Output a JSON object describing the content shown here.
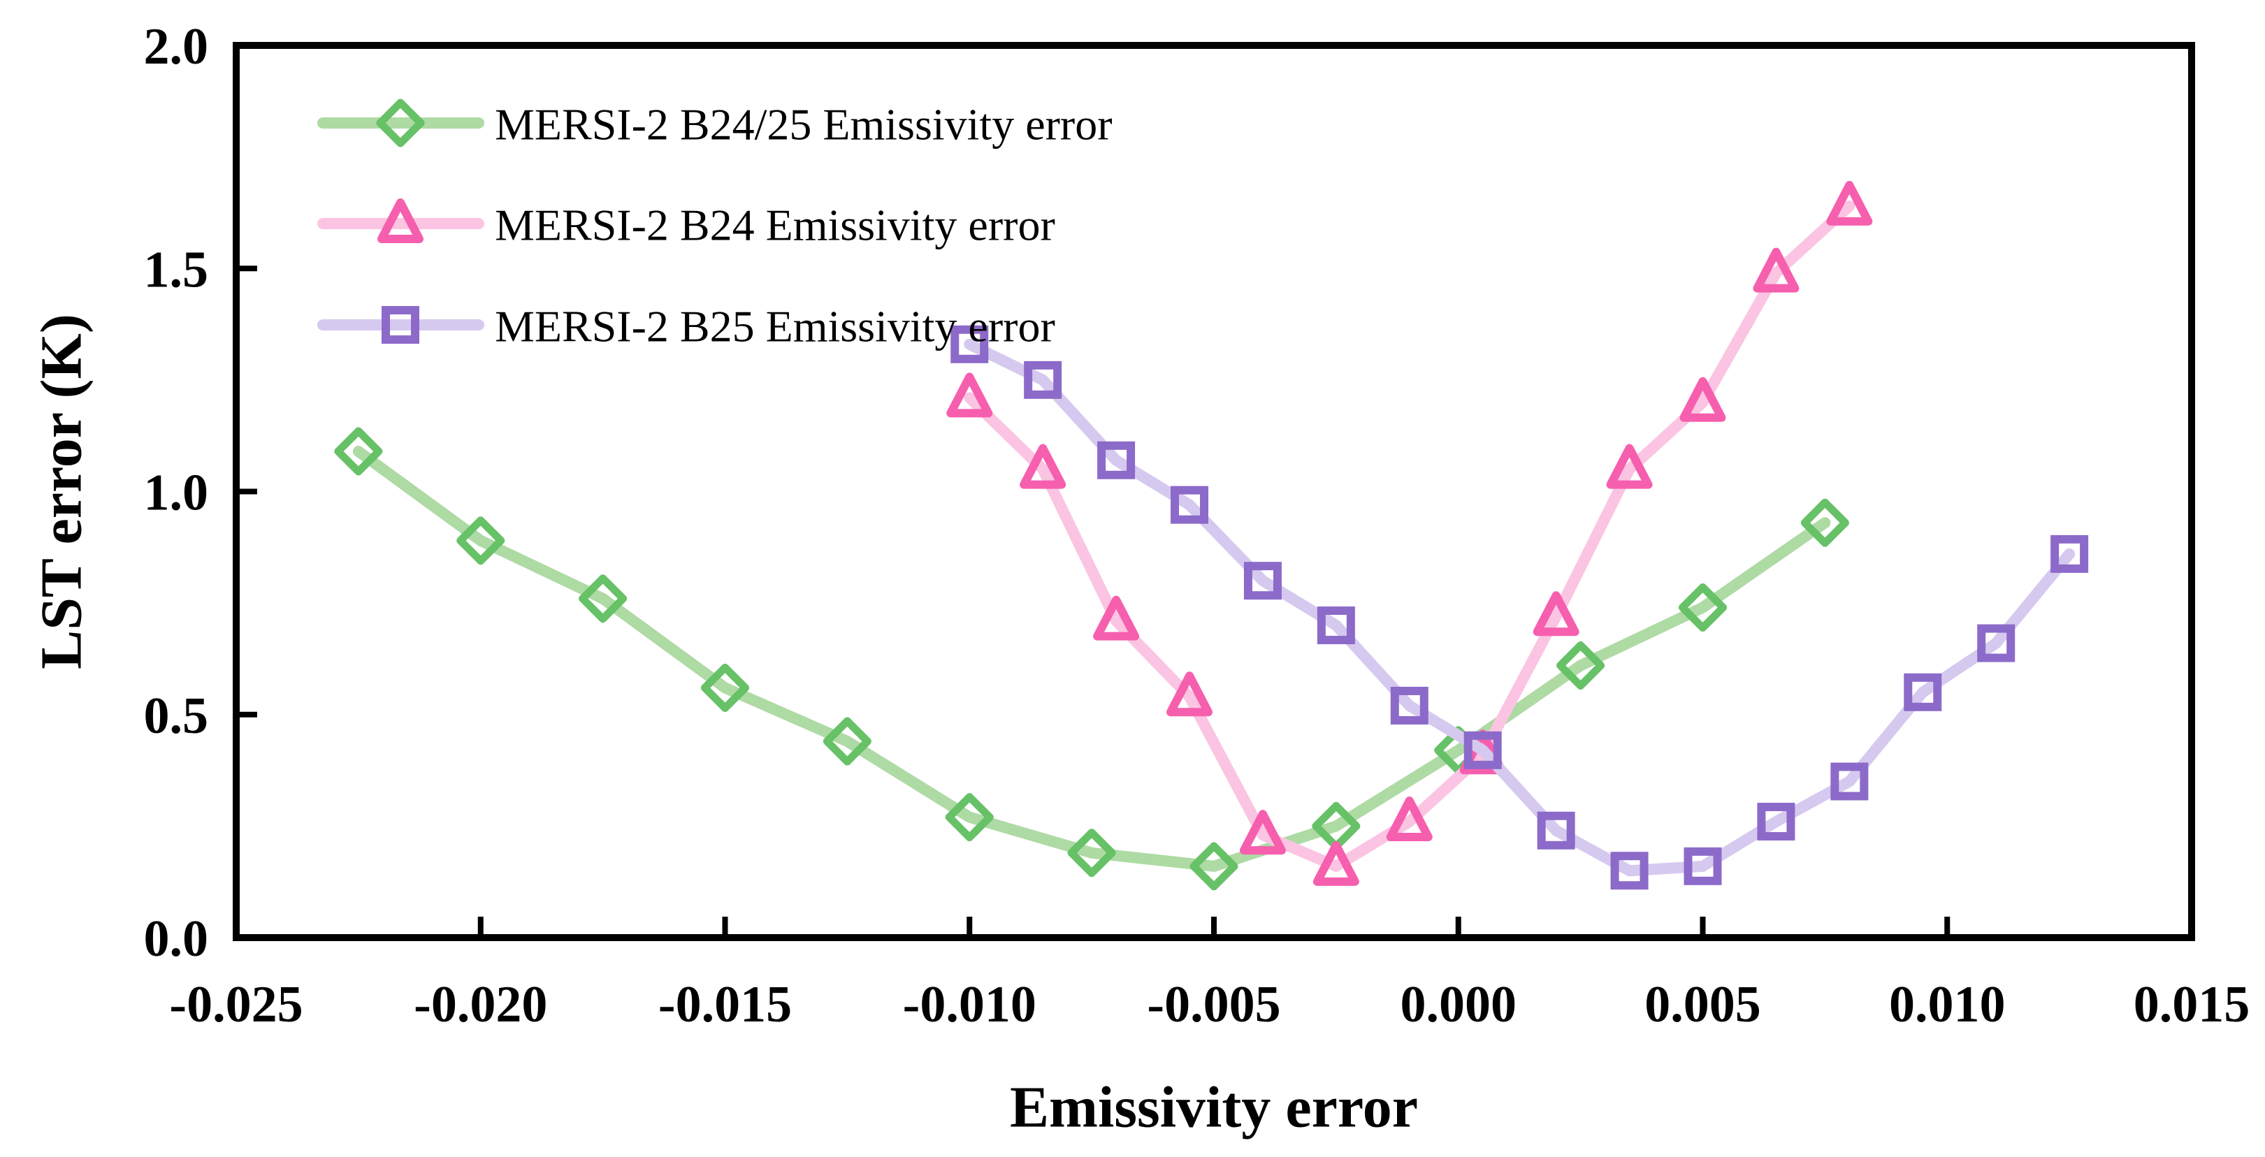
{
  "chart_data": {
    "type": "line",
    "title": "",
    "xlabel": "Emissivity error",
    "ylabel": "LST error (K)",
    "xlim": [
      -0.025,
      0.015
    ],
    "ylim": [
      0.0,
      2.0
    ],
    "grid": false,
    "background_color": "#ffffff",
    "axis_color": "#000000",
    "x_ticks": [
      -0.025,
      -0.02,
      -0.015,
      -0.01,
      -0.005,
      0.0,
      0.005,
      0.01,
      0.015
    ],
    "x_tick_labels": [
      "-0.025",
      "-0.020",
      "-0.015",
      "-0.010",
      "-0.005",
      "0.000",
      "0.005",
      "0.010",
      "0.015"
    ],
    "y_ticks": [
      0.0,
      0.5,
      1.0,
      1.5,
      2.0
    ],
    "y_tick_labels": [
      "0.0",
      "0.5",
      "1.0",
      "1.5",
      "2.0"
    ],
    "legend_position": "top-left-inside",
    "series": [
      {
        "name": "MERSI-2 B24/25 Emissivity error",
        "marker": "diamond",
        "line_color": "#aedaa4",
        "marker_color": "#67c167",
        "x": [
          -0.0225,
          -0.02,
          -0.0175,
          -0.015,
          -0.0125,
          -0.01,
          -0.0075,
          -0.005,
          -0.0025,
          0.0,
          0.0025,
          0.005,
          0.0075
        ],
        "y": [
          1.09,
          0.89,
          0.76,
          0.56,
          0.44,
          0.27,
          0.19,
          0.16,
          0.25,
          0.42,
          0.61,
          0.74,
          0.93
        ]
      },
      {
        "name": "MERSI-2 B24 Emissivity error",
        "marker": "triangle",
        "line_color": "#fbc4e2",
        "marker_color": "#f65fae",
        "x": [
          -0.01,
          -0.0085,
          -0.007,
          -0.0055,
          -0.004,
          -0.0025,
          -0.001,
          0.0005,
          0.002,
          0.0035,
          0.005,
          0.0065,
          0.008
        ],
        "y": [
          1.21,
          1.05,
          0.71,
          0.54,
          0.23,
          0.16,
          0.26,
          0.41,
          0.72,
          1.05,
          1.2,
          1.49,
          1.64
        ]
      },
      {
        "name": "MERSI-2 B25 Emissivity error",
        "marker": "square",
        "line_color": "#d6c9ef",
        "marker_color": "#8c6ac9",
        "x": [
          -0.01,
          -0.0085,
          -0.007,
          -0.0055,
          -0.004,
          -0.0025,
          -0.001,
          0.0005,
          0.002,
          0.0035,
          0.005,
          0.0065,
          0.008,
          0.0095,
          0.011,
          0.0125
        ],
        "y": [
          1.33,
          1.25,
          1.07,
          0.97,
          0.8,
          0.7,
          0.52,
          0.42,
          0.24,
          0.15,
          0.16,
          0.26,
          0.35,
          0.55,
          0.66,
          0.86
        ]
      }
    ]
  }
}
